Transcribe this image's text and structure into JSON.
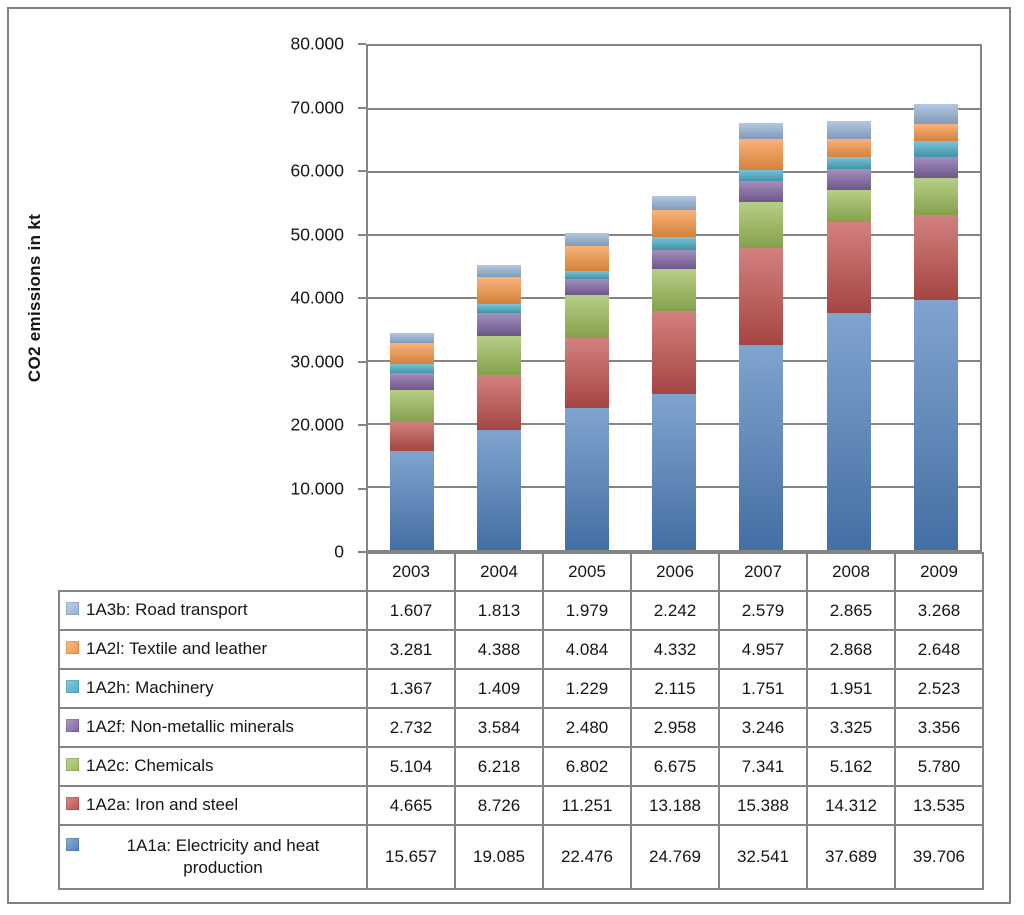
{
  "figure": {
    "y_axis_title": "CO2 emissions in kt",
    "y_ticks": [
      "80.000",
      "70.000",
      "60.000",
      "50.000",
      "40.000",
      "30.000",
      "20.000",
      "10.000",
      "0"
    ]
  },
  "chart_data": {
    "type": "bar",
    "stacked": true,
    "title": "",
    "xlabel": "",
    "ylabel": "CO2 emissions in kt",
    "ylim": [
      0,
      80000
    ],
    "gridline_step": 10000,
    "grid": true,
    "legend_position": "table-below",
    "categories": [
      "2003",
      "2004",
      "2005",
      "2006",
      "2007",
      "2008",
      "2009"
    ],
    "series": [
      {
        "name": "1A1a: Electricity and heat production",
        "color": "#4F81BD",
        "values": [
          15657,
          19085,
          22476,
          24769,
          32541,
          37689,
          39706
        ]
      },
      {
        "name": "1A2a: Iron and steel",
        "color": "#C0504D",
        "values": [
          4665,
          8726,
          11251,
          13188,
          15388,
          14312,
          13535
        ]
      },
      {
        "name": "1A2c: Chemicals",
        "color": "#9BBB59",
        "values": [
          5104,
          6218,
          6802,
          6675,
          7341,
          5162,
          5780
        ]
      },
      {
        "name": "1A2f: Non-metallic minerals",
        "color": "#8064A2",
        "values": [
          2732,
          3584,
          2480,
          2958,
          3246,
          3325,
          3356
        ]
      },
      {
        "name": "1A2h: Machinery",
        "color": "#4BACC6",
        "values": [
          1367,
          1409,
          1229,
          2115,
          1751,
          1951,
          2523
        ]
      },
      {
        "name": "1A2l: Textile and leather",
        "color": "#F79646",
        "values": [
          3281,
          4388,
          4084,
          4332,
          4957,
          2868,
          2648
        ]
      },
      {
        "name": "1A3b: Road transport",
        "color": "#95B3D7",
        "values": [
          1607,
          1813,
          1979,
          2242,
          2579,
          2865,
          3268
        ]
      }
    ]
  },
  "table": {
    "year_header": [
      "2003",
      "2004",
      "2005",
      "2006",
      "2007",
      "2008",
      "2009"
    ],
    "rows": [
      {
        "label": "1A3b: Road transport",
        "color": "#95B3D7",
        "values": [
          "1.607",
          "1.813",
          "1.979",
          "2.242",
          "2.579",
          "2.865",
          "3.268"
        ]
      },
      {
        "label": "1A2l: Textile and leather",
        "color": "#F79646",
        "values": [
          "3.281",
          "4.388",
          "4.084",
          "4.332",
          "4.957",
          "2.868",
          "2.648"
        ]
      },
      {
        "label": "1A2h: Machinery",
        "color": "#4BACC6",
        "values": [
          "1.367",
          "1.409",
          "1.229",
          "2.115",
          "1.751",
          "1.951",
          "2.523"
        ]
      },
      {
        "label": "1A2f: Non-metallic minerals",
        "color": "#8064A2",
        "values": [
          "2.732",
          "3.584",
          "2.480",
          "2.958",
          "3.246",
          "3.325",
          "3.356"
        ]
      },
      {
        "label": "1A2c: Chemicals",
        "color": "#9BBB59",
        "values": [
          "5.104",
          "6.218",
          "6.802",
          "6.675",
          "7.341",
          "5.162",
          "5.780"
        ]
      },
      {
        "label": "1A2a: Iron and steel",
        "color": "#C0504D",
        "values": [
          "4.665",
          "8.726",
          "11.251",
          "13.188",
          "15.388",
          "14.312",
          "13.535"
        ]
      },
      {
        "label": "1A1a: Electricity and heat production",
        "color": "#4F81BD",
        "values": [
          "15.657",
          "19.085",
          "22.476",
          "24.769",
          "32.541",
          "37.689",
          "39.706"
        ]
      }
    ]
  }
}
